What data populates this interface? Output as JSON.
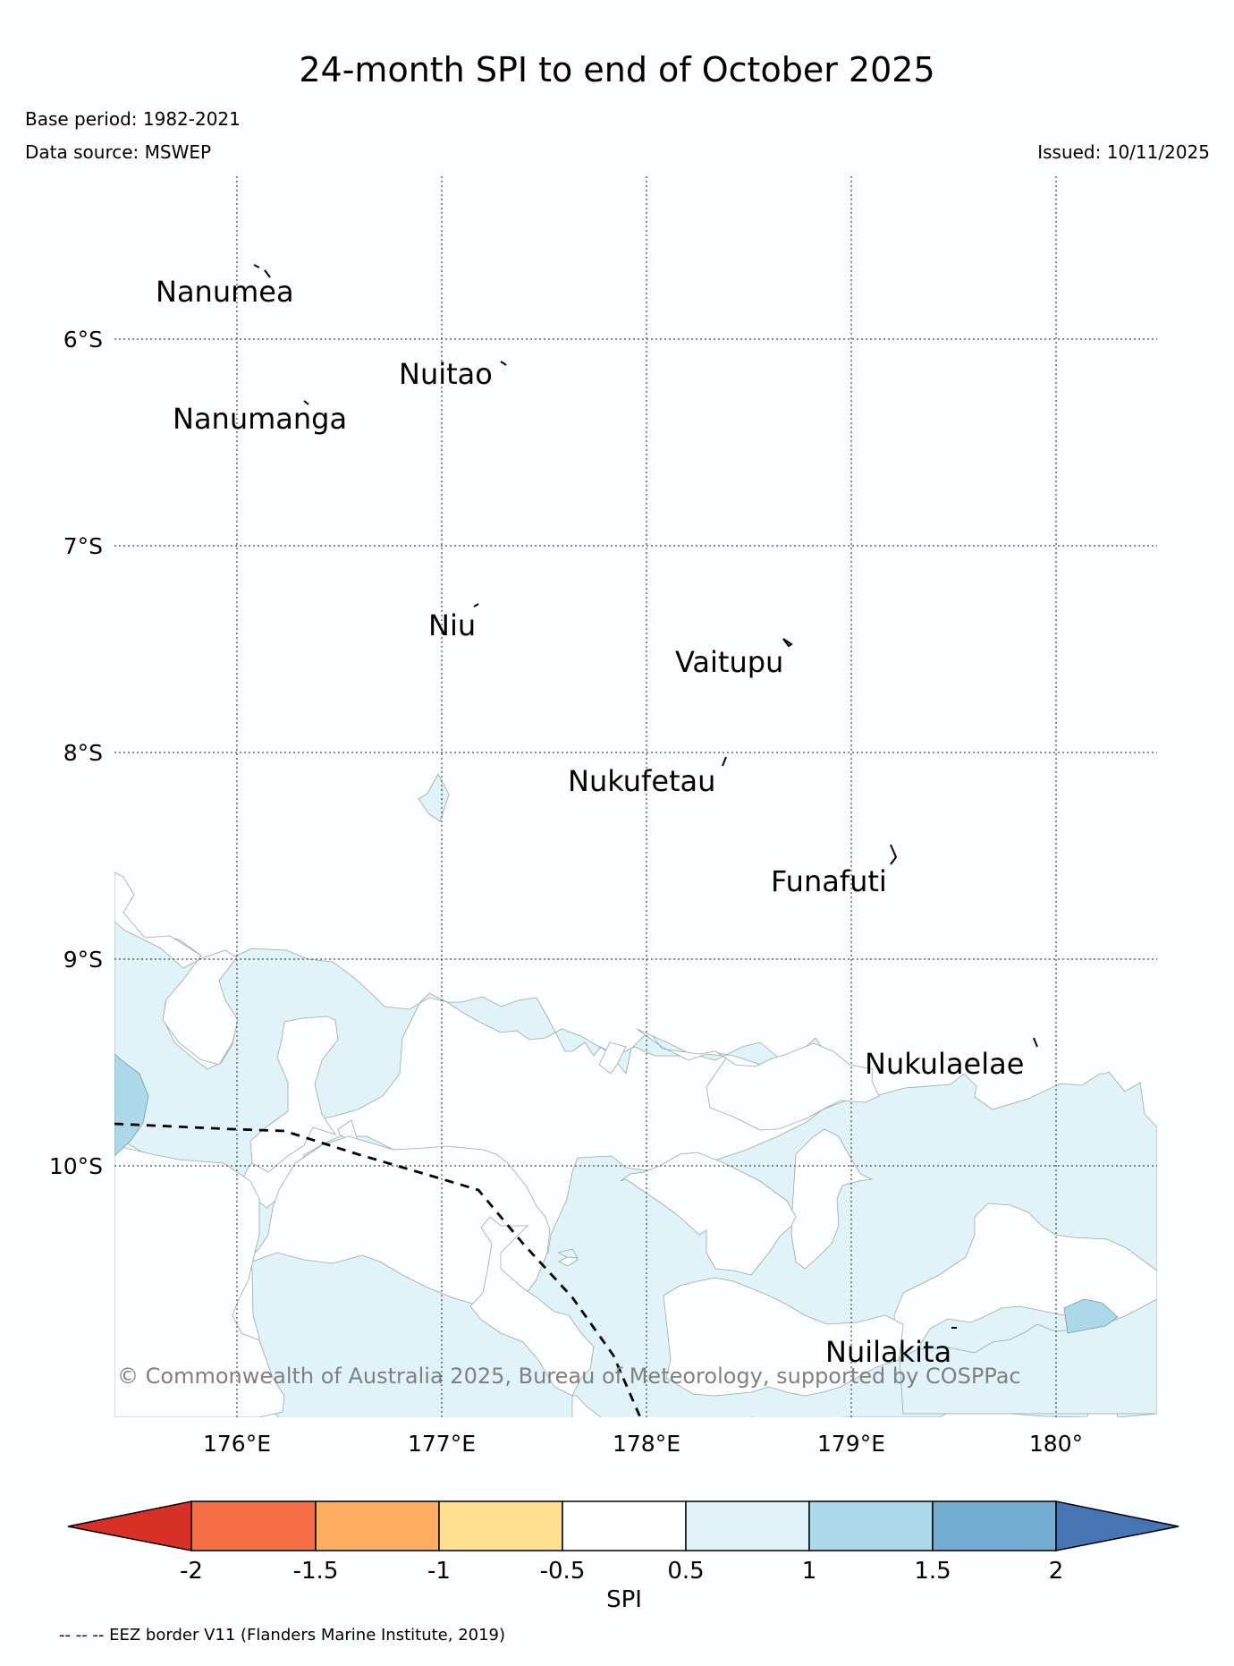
{
  "header": {
    "title": "24-month SPI to end of October 2025",
    "base_period": "Base period: 1982-2021",
    "data_source": "Data source: MSWEP",
    "issued": "Issued: 10/11/2025"
  },
  "map": {
    "lat_labels": [
      "6°S",
      "7°S",
      "8°S",
      "9°S",
      "10°S"
    ],
    "lon_labels": [
      "176°E",
      "177°E",
      "178°E",
      "179°E",
      "180°"
    ],
    "islands": [
      "Nanumea",
      "Nuitao",
      "Nanumanga",
      "Niu",
      "Vaitupu",
      "Nukufetau",
      "Funafuti",
      "Nukulaelae",
      "Nuilakita"
    ],
    "copyright": "© Commonwealth of Australia 2025, Bureau of Meteorology, supported by COSPPac",
    "colors": {
      "spi_0.5_1": "#e0f3f8",
      "spi_1_1.5": "#abd9e9",
      "eez_line": "#000000"
    }
  },
  "colorbar": {
    "title": "SPI",
    "tick_labels": [
      "-2",
      "-1.5",
      "-1",
      "-0.5",
      "0.5",
      "1",
      "1.5",
      "2"
    ],
    "colors": [
      "#d73027",
      "#f46d43",
      "#fdae61",
      "#fee090",
      "#ffffff",
      "#e0f3f8",
      "#abd9e9",
      "#74add1",
      "#4575b4"
    ]
  },
  "footnote": "-- -- -- EEZ border V11 (Flanders Marine Institute, 2019)"
}
